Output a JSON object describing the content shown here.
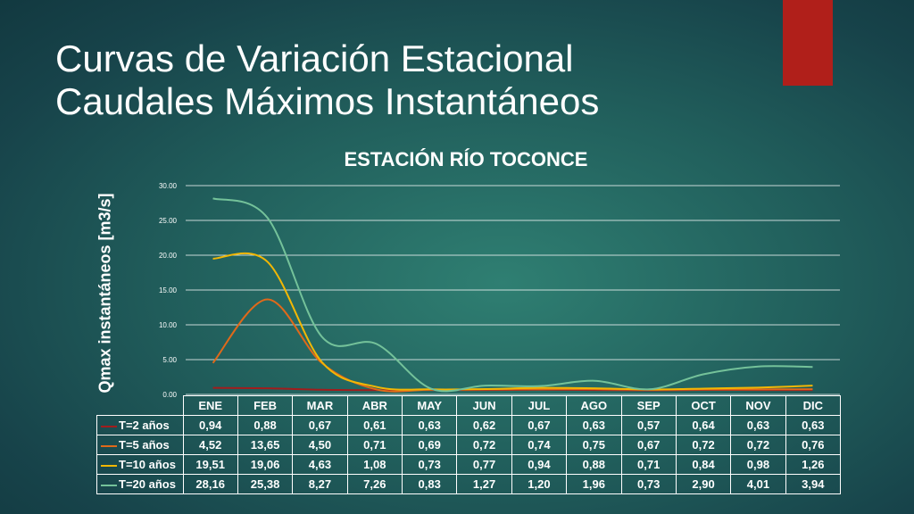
{
  "slide": {
    "title_line1": "Curvas de Variación Estacional",
    "title_line2": "Caudales Máximos Instantáneos",
    "accent_color": "#b01f1a"
  },
  "chart_data": {
    "type": "line",
    "title": "ESTACIÓN RÍO TOCONCE",
    "ylabel": "Qmax instantáneos [m3/s]",
    "xlabel": "",
    "ylim": [
      0,
      30
    ],
    "yticks": [
      "0.00",
      "5.00",
      "10.00",
      "15.00",
      "20.00",
      "25.00",
      "30.00"
    ],
    "grid": true,
    "legend": "data-table",
    "categories": [
      "ENE",
      "FEB",
      "MAR",
      "ABR",
      "MAY",
      "JUN",
      "JUL",
      "AGO",
      "SEP",
      "OCT",
      "NOV",
      "DIC"
    ],
    "series": [
      {
        "name": "T=2 años",
        "color": "#a11d1d",
        "values": [
          0.94,
          0.88,
          0.67,
          0.61,
          0.63,
          0.62,
          0.67,
          0.63,
          0.57,
          0.64,
          0.63,
          0.63
        ],
        "labels": [
          "0,94",
          "0,88",
          "0,67",
          "0,61",
          "0,63",
          "0,62",
          "0,67",
          "0,63",
          "0,57",
          "0,64",
          "0,63",
          "0,63"
        ]
      },
      {
        "name": "T=5 años",
        "color": "#e0691a",
        "values": [
          4.52,
          13.65,
          4.5,
          0.71,
          0.69,
          0.72,
          0.74,
          0.75,
          0.67,
          0.72,
          0.72,
          0.76
        ],
        "labels": [
          "4,52",
          "13,65",
          "4,50",
          "0,71",
          "0,69",
          "0,72",
          "0,74",
          "0,75",
          "0,67",
          "0,72",
          "0,72",
          "0,76"
        ]
      },
      {
        "name": "T=10 años",
        "color": "#f2b705",
        "values": [
          19.51,
          19.06,
          4.63,
          1.08,
          0.73,
          0.77,
          0.94,
          0.88,
          0.71,
          0.84,
          0.98,
          1.26
        ],
        "labels": [
          "19,51",
          "19,06",
          "4,63",
          "1,08",
          "0,73",
          "0,77",
          "0,94",
          "0,88",
          "0,71",
          "0,84",
          "0,98",
          "1,26"
        ]
      },
      {
        "name": "T=20 años",
        "color": "#74c29a",
        "values": [
          28.16,
          25.38,
          8.27,
          7.26,
          0.83,
          1.27,
          1.2,
          1.96,
          0.73,
          2.9,
          4.01,
          3.94
        ],
        "labels": [
          "28,16",
          "25,38",
          "8,27",
          "7,26",
          "0,83",
          "1,27",
          "1,20",
          "1,96",
          "0,73",
          "2,90",
          "4,01",
          "3,94"
        ]
      }
    ]
  }
}
